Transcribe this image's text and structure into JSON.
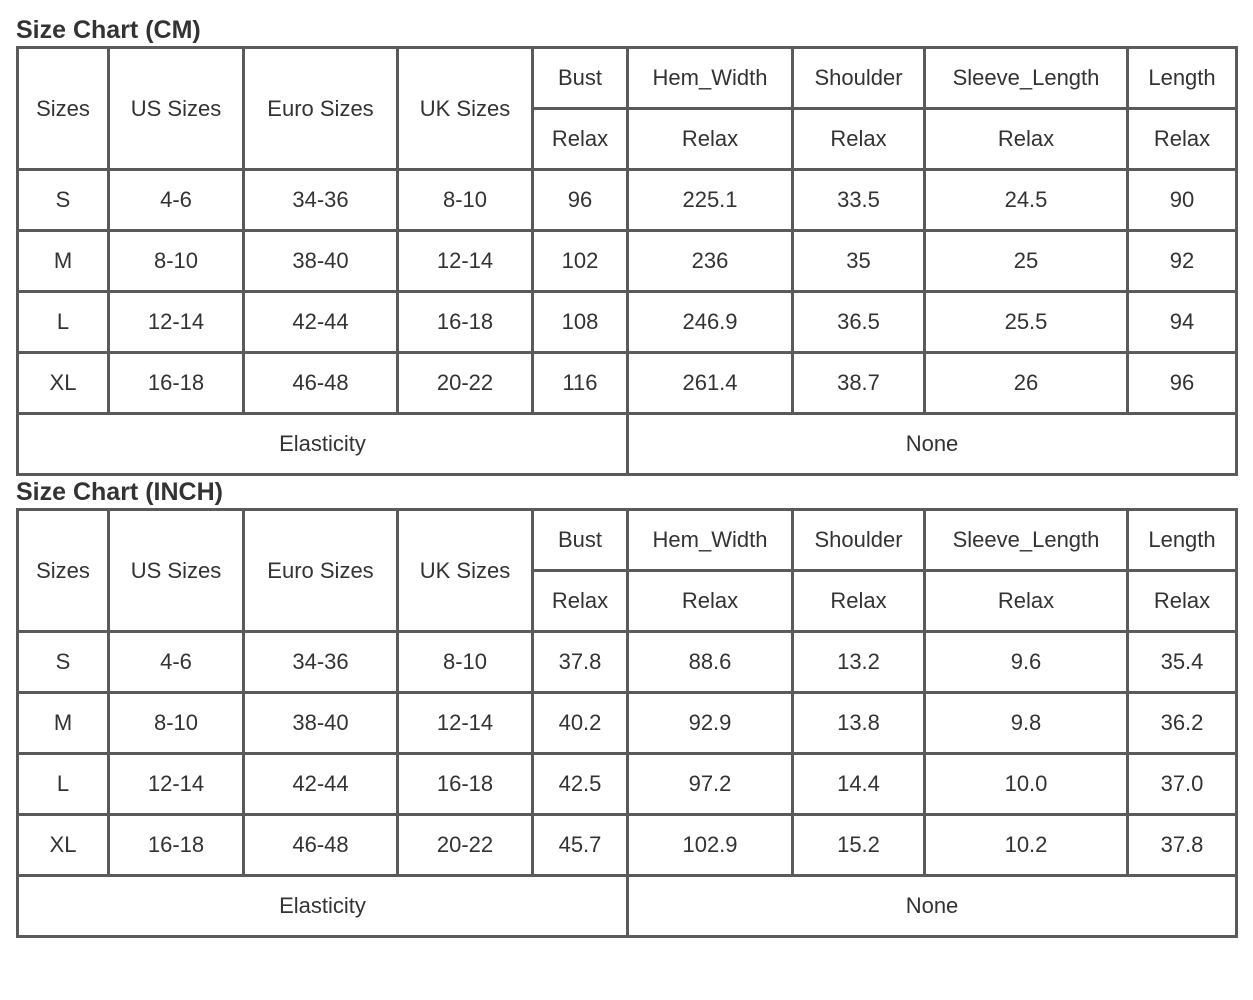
{
  "tables": [
    {
      "title": "Size Chart (CM)",
      "columns": [
        "Sizes",
        "US Sizes",
        "Euro Sizes",
        "UK Sizes"
      ],
      "measures": [
        "Bust",
        "Hem_Width",
        "Shoulder",
        "Sleeve_Length",
        "Length"
      ],
      "sub": [
        "Relax",
        "Relax",
        "Relax",
        "Relax",
        "Relax"
      ],
      "rows": [
        [
          "S",
          "4-6",
          "34-36",
          "8-10",
          "96",
          "225.1",
          "33.5",
          "24.5",
          "90"
        ],
        [
          "M",
          "8-10",
          "38-40",
          "12-14",
          "102",
          "236",
          "35",
          "25",
          "92"
        ],
        [
          "L",
          "12-14",
          "42-44",
          "16-18",
          "108",
          "246.9",
          "36.5",
          "25.5",
          "94"
        ],
        [
          "XL",
          "16-18",
          "46-48",
          "20-22",
          "116",
          "261.4",
          "38.7",
          "26",
          "96"
        ]
      ],
      "footer": [
        "Elasticity",
        "None"
      ]
    },
    {
      "title": "Size Chart (INCH)",
      "columns": [
        "Sizes",
        "US Sizes",
        "Euro Sizes",
        "UK Sizes"
      ],
      "measures": [
        "Bust",
        "Hem_Width",
        "Shoulder",
        "Sleeve_Length",
        "Length"
      ],
      "sub": [
        "Relax",
        "Relax",
        "Relax",
        "Relax",
        "Relax"
      ],
      "rows": [
        [
          "S",
          "4-6",
          "34-36",
          "8-10",
          "37.8",
          "88.6",
          "13.2",
          "9.6",
          "35.4"
        ],
        [
          "M",
          "8-10",
          "38-40",
          "12-14",
          "40.2",
          "92.9",
          "13.8",
          "9.8",
          "36.2"
        ],
        [
          "L",
          "12-14",
          "42-44",
          "16-18",
          "42.5",
          "97.2",
          "14.4",
          "10.0",
          "37.0"
        ],
        [
          "XL",
          "16-18",
          "46-48",
          "20-22",
          "45.7",
          "102.9",
          "15.2",
          "10.2",
          "37.8"
        ]
      ],
      "footer": [
        "Elasticity",
        "None"
      ]
    }
  ]
}
